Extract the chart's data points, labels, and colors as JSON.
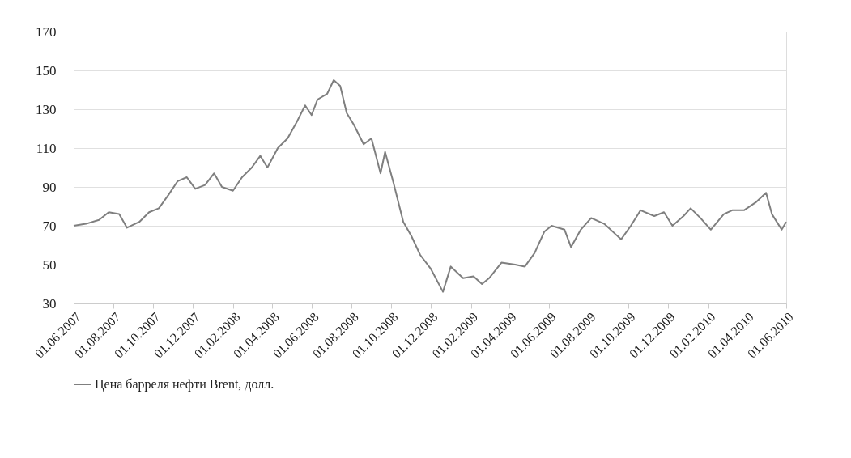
{
  "chart_data": {
    "type": "line",
    "x": [
      "2007-06-01",
      "2007-06-20",
      "2007-07-10",
      "2007-07-25",
      "2007-08-10",
      "2007-08-22",
      "2007-09-10",
      "2007-09-25",
      "2007-10-10",
      "2007-10-25",
      "2007-11-08",
      "2007-11-22",
      "2007-12-05",
      "2007-12-20",
      "2008-01-03",
      "2008-01-15",
      "2008-02-01",
      "2008-02-15",
      "2008-03-01",
      "2008-03-14",
      "2008-03-25",
      "2008-04-10",
      "2008-04-25",
      "2008-05-10",
      "2008-05-22",
      "2008-06-01",
      "2008-06-10",
      "2008-06-25",
      "2008-07-05",
      "2008-07-15",
      "2008-07-25",
      "2008-08-05",
      "2008-08-20",
      "2008-09-01",
      "2008-09-15",
      "2008-09-22",
      "2008-10-05",
      "2008-10-20",
      "2008-11-01",
      "2008-11-15",
      "2008-12-01",
      "2008-12-20",
      "2009-01-01",
      "2009-01-20",
      "2009-02-05",
      "2009-02-18",
      "2009-03-01",
      "2009-03-20",
      "2009-04-10",
      "2009-04-25",
      "2009-05-10",
      "2009-05-25",
      "2009-06-05",
      "2009-06-25",
      "2009-07-05",
      "2009-07-20",
      "2009-08-05",
      "2009-08-25",
      "2009-09-20",
      "2009-10-05",
      "2009-10-20",
      "2009-11-10",
      "2009-11-25",
      "2009-12-08",
      "2009-12-25",
      "2010-01-05",
      "2010-01-20",
      "2010-02-05",
      "2010-02-25",
      "2010-03-10",
      "2010-03-28",
      "2010-04-15",
      "2010-05-01",
      "2010-05-10",
      "2010-05-25",
      "2010-06-01"
    ],
    "series": [
      {
        "name": "Цена барреля нефти Brent, долл.",
        "color": "#7f7f7f",
        "values": [
          70,
          71,
          73,
          77,
          76,
          69,
          72,
          77,
          79,
          86,
          93,
          95,
          89,
          91,
          97,
          90,
          88,
          95,
          100,
          106,
          100,
          110,
          115,
          124,
          132,
          127,
          135,
          138,
          145,
          142,
          128,
          122,
          112,
          115,
          97,
          108,
          92,
          72,
          65,
          55,
          48,
          36,
          49,
          43,
          44,
          40,
          43,
          51,
          50,
          49,
          56,
          67,
          70,
          68,
          59,
          68,
          74,
          71,
          63,
          70,
          78,
          75,
          77,
          70,
          75,
          79,
          74,
          68,
          76,
          78,
          78,
          82,
          87,
          76,
          68,
          72
        ]
      }
    ],
    "ylim": [
      30,
      170
    ],
    "yticks": [
      30,
      50,
      70,
      90,
      110,
      130,
      150,
      170
    ],
    "xlim": [
      "2007-06-01",
      "2010-06-01"
    ],
    "xticks": [
      {
        "value": "2007-06-01",
        "label": "01.06.2007"
      },
      {
        "value": "2007-08-01",
        "label": "01.08.2007"
      },
      {
        "value": "2007-10-01",
        "label": "01.10.2007"
      },
      {
        "value": "2007-12-01",
        "label": "01.12.2007"
      },
      {
        "value": "2008-02-01",
        "label": "01.02.2008"
      },
      {
        "value": "2008-04-01",
        "label": "01.04.2008"
      },
      {
        "value": "2008-06-01",
        "label": "01.06.2008"
      },
      {
        "value": "2008-08-01",
        "label": "01.08.2008"
      },
      {
        "value": "2008-10-01",
        "label": "01.10.2008"
      },
      {
        "value": "2008-12-01",
        "label": "01.12.2008"
      },
      {
        "value": "2009-02-01",
        "label": "01.02.2009"
      },
      {
        "value": "2009-04-01",
        "label": "01.04.2009"
      },
      {
        "value": "2009-06-01",
        "label": "01.06.2009"
      },
      {
        "value": "2009-08-01",
        "label": "01.08.2009"
      },
      {
        "value": "2009-10-01",
        "label": "01.10.2009"
      },
      {
        "value": "2009-12-01",
        "label": "01.12.2009"
      },
      {
        "value": "2010-02-01",
        "label": "01.02.2010"
      },
      {
        "value": "2010-04-01",
        "label": "01.04.2010"
      },
      {
        "value": "2010-06-01",
        "label": "01.06.2010"
      }
    ],
    "grid": "y",
    "legend": "bottom",
    "marker": "none",
    "line_style": "solid"
  }
}
